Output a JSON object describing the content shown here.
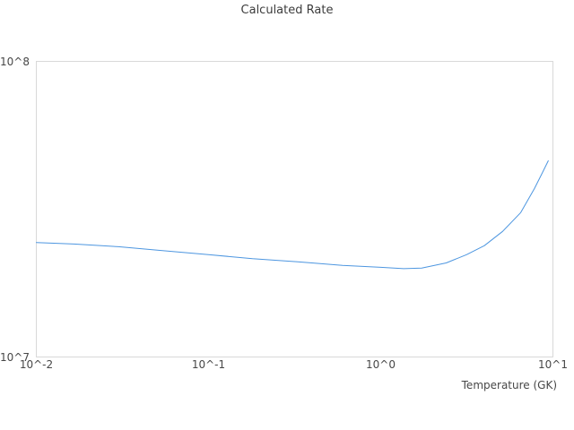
{
  "chart_data": {
    "type": "line",
    "title": "Calculated Rate",
    "xlabel": "Temperature (GK)",
    "ylabel": "",
    "x_scale": "log",
    "y_scale": "log",
    "xlim": [
      0.01,
      10
    ],
    "ylim": [
      10000000,
      100000000
    ],
    "grid": false,
    "legend": "none",
    "line_color": "#4d96e0",
    "border_color": "#d9d9d9",
    "x_ticks": [
      {
        "value": 0.01,
        "label": "10^-2"
      },
      {
        "value": 0.1,
        "label": "10^-1"
      },
      {
        "value": 1,
        "label": "10^0"
      },
      {
        "value": 10,
        "label": "10^1"
      }
    ],
    "y_ticks": [
      {
        "value": 100000000,
        "label": "10^8"
      },
      {
        "value": 10000000,
        "label": "10^7"
      }
    ],
    "series": [
      {
        "name": "Calculated Rate",
        "x": [
          0.01,
          0.0165,
          0.03,
          0.054,
          0.1,
          0.18,
          0.33,
          0.6,
          1.0,
          1.36,
          1.73,
          2.4,
          3.16,
          4.0,
          5.1,
          6.5,
          7.8,
          8.6,
          9.4
        ],
        "y": [
          24400000,
          24100000,
          23600000,
          22900000,
          22200000,
          21500000,
          21000000,
          20400000,
          20100000,
          19900000,
          20000000,
          20800000,
          22200000,
          23800000,
          26600000,
          30800000,
          37100000,
          41500000,
          46100000
        ]
      }
    ]
  }
}
